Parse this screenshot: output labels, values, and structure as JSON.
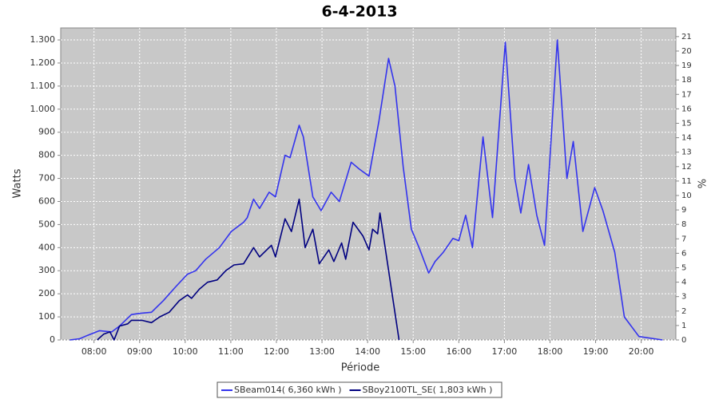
{
  "chart_data": {
    "type": "line",
    "title": "6-4-2013",
    "xlabel": "Période",
    "ylabel": "Watts",
    "y2label": "%",
    "xlim": [
      7.27,
      20.76
    ],
    "xticks": [
      {
        "value": 8,
        "label": "08:00"
      },
      {
        "value": 9,
        "label": "09:00"
      },
      {
        "value": 10,
        "label": "10:00"
      },
      {
        "value": 11,
        "label": "11:00"
      },
      {
        "value": 12,
        "label": "12:00"
      },
      {
        "value": 13,
        "label": "13:00"
      },
      {
        "value": 14,
        "label": "14:00"
      },
      {
        "value": 15,
        "label": "15:00"
      },
      {
        "value": 16,
        "label": "16:00"
      },
      {
        "value": 17,
        "label": "17:00"
      },
      {
        "value": 18,
        "label": "18:00"
      },
      {
        "value": 19,
        "label": "19:00"
      },
      {
        "value": 20,
        "label": "20:00"
      }
    ],
    "ylim": [
      0,
      1352
    ],
    "yticks": [
      0,
      100,
      200,
      300,
      400,
      500,
      600,
      700,
      800,
      900,
      {
        "value": 1000,
        "label": "1.000"
      },
      {
        "value": 1100,
        "label": "1.100"
      },
      {
        "value": 1200,
        "label": "1.200"
      },
      {
        "value": 1300,
        "label": "1.300"
      }
    ],
    "y2lim": [
      0,
      21.6
    ],
    "y2ticks": [
      0,
      1,
      2,
      3,
      4,
      5,
      6,
      7,
      8,
      9,
      10,
      11,
      12,
      13,
      14,
      15,
      16,
      17,
      18,
      19,
      20,
      21
    ],
    "grid": true,
    "series": [
      {
        "name": "SBeam014( 6,360 kWh )",
        "color": "#3333ee",
        "x": [
          7.47,
          7.68,
          7.86,
          8.12,
          8.39,
          8.56,
          8.82,
          9.0,
          9.26,
          9.52,
          9.79,
          10.05,
          10.23,
          10.45,
          10.75,
          11.01,
          11.28,
          11.36,
          11.5,
          11.63,
          11.84,
          11.98,
          12.19,
          12.3,
          12.5,
          12.59,
          12.8,
          12.98,
          13.2,
          13.38,
          13.64,
          13.82,
          14.03,
          14.25,
          14.46,
          14.6,
          14.78,
          14.96,
          15.13,
          15.34,
          15.48,
          15.66,
          15.87,
          16.0,
          16.15,
          16.3,
          16.53,
          16.74,
          17.02,
          17.23,
          17.36,
          17.53,
          17.71,
          17.88,
          18.16,
          18.37,
          18.51,
          18.72,
          18.98,
          19.16,
          19.42,
          19.63,
          19.95,
          20.47
        ],
        "values": [
          0,
          5,
          20,
          40,
          35,
          60,
          110,
          115,
          120,
          170,
          230,
          285,
          300,
          350,
          400,
          470,
          510,
          530,
          610,
          570,
          640,
          620,
          800,
          790,
          930,
          880,
          620,
          560,
          640,
          600,
          770,
          740,
          710,
          950,
          1220,
          1100,
          750,
          480,
          400,
          290,
          340,
          380,
          440,
          430,
          540,
          400,
          880,
          530,
          1290,
          700,
          550,
          760,
          540,
          410,
          1300,
          700,
          860,
          470,
          660,
          560,
          380,
          100,
          15,
          0
        ]
      },
      {
        "name": "SBoy2100TL_SE( 1,803 kWh )",
        "color": "#000080",
        "x": [
          8.07,
          8.21,
          8.35,
          8.44,
          8.56,
          8.74,
          8.82,
          9.05,
          9.26,
          9.44,
          9.65,
          9.87,
          10.05,
          10.14,
          10.31,
          10.49,
          10.7,
          10.89,
          11.07,
          11.28,
          11.5,
          11.63,
          11.89,
          11.98,
          12.19,
          12.33,
          12.5,
          12.63,
          12.8,
          12.94,
          13.15,
          13.26,
          13.43,
          13.52,
          13.68,
          13.9,
          14.03,
          14.11,
          14.22,
          14.27,
          14.69
        ],
        "values": [
          0,
          25,
          35,
          0,
          60,
          70,
          85,
          85,
          75,
          100,
          120,
          170,
          195,
          180,
          220,
          250,
          260,
          300,
          325,
          330,
          400,
          360,
          410,
          360,
          525,
          470,
          610,
          400,
          480,
          330,
          390,
          340,
          420,
          350,
          510,
          450,
          390,
          480,
          460,
          550,
          0
        ]
      }
    ]
  }
}
